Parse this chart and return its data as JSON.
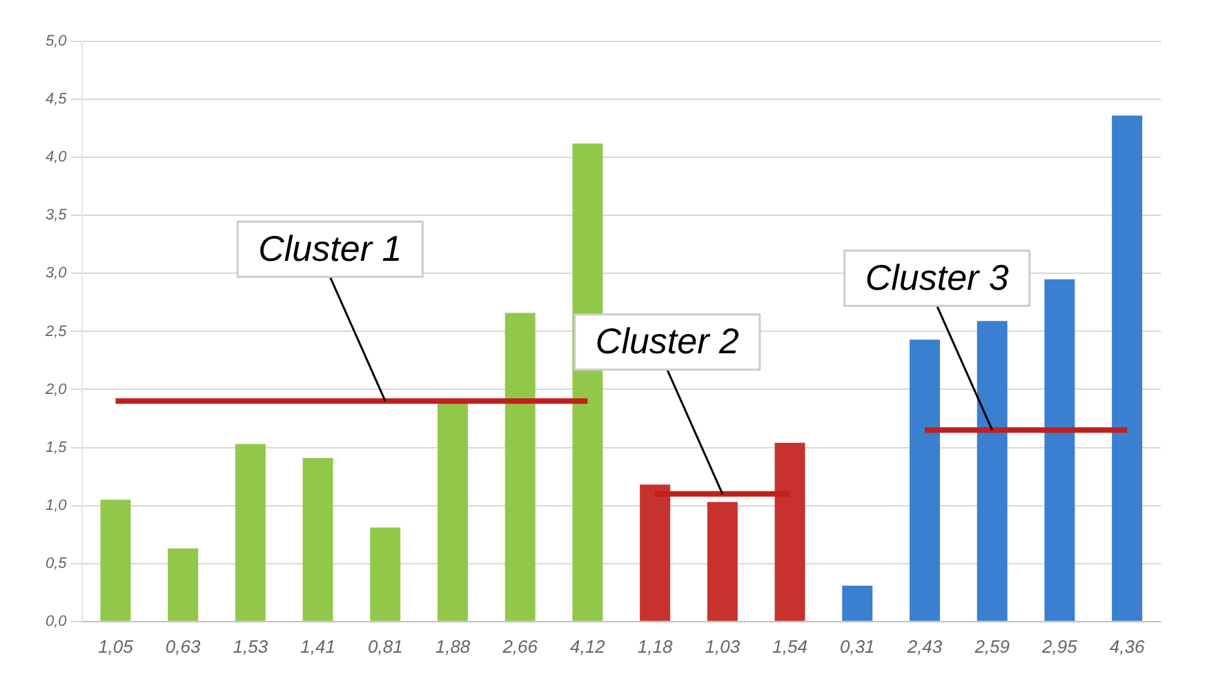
{
  "chart_data": {
    "type": "bar",
    "categories": [
      "1,05",
      "0,63",
      "1,53",
      "1,41",
      "0,81",
      "1,88",
      "2,66",
      "4,12",
      "1,18",
      "1,03",
      "1,54",
      "0,31",
      "2,43",
      "2,59",
      "2,95",
      "4,36"
    ],
    "series": [
      {
        "values": [
          1.05,
          0.63,
          1.53,
          1.41,
          0.81,
          1.88,
          2.66,
          4.12,
          1.18,
          1.03,
          1.54,
          0.31,
          2.43,
          2.59,
          2.95,
          4.36
        ],
        "colors": [
          "#92c84a",
          "#92c84a",
          "#92c84a",
          "#92c84a",
          "#92c84a",
          "#92c84a",
          "#92c84a",
          "#92c84a",
          "#c8322e",
          "#c8322e",
          "#c8322e",
          "#3a7fd0",
          "#3a7fd0",
          "#3a7fd0",
          "#3a7fd0",
          "#3a7fd0"
        ]
      },
      {
        "type": "line",
        "color": "#c0201c",
        "values": [
          1.9,
          1.9,
          1.9,
          1.9,
          1.9,
          1.9,
          1.9,
          1.9,
          null,
          null,
          null,
          null,
          null,
          null,
          null,
          null
        ]
      },
      {
        "type": "line",
        "color": "#c0201c",
        "values": [
          null,
          null,
          null,
          null,
          null,
          null,
          null,
          null,
          1.1,
          1.1,
          1.1,
          null,
          null,
          null,
          null,
          null
        ]
      },
      {
        "type": "line",
        "color": "#c0201c",
        "values": [
          null,
          null,
          null,
          null,
          null,
          null,
          null,
          null,
          null,
          null,
          null,
          null,
          1.65,
          1.65,
          1.65,
          1.65
        ]
      }
    ],
    "annotations": [
      {
        "text": "Cluster 1",
        "x": "0,81",
        "y": 1.9
      },
      {
        "text": "Cluster 2",
        "x": "1,03",
        "y": 1.1
      },
      {
        "text": "Cluster 3",
        "x": "2,59",
        "y": 1.65
      }
    ],
    "ylim": [
      0,
      5
    ],
    "yticks": [
      {
        "value": 0,
        "label": "0,0"
      },
      {
        "value": 0.5,
        "label": "0,5"
      },
      {
        "value": 1,
        "label": "1,0"
      },
      {
        "value": 1.5,
        "label": "1,5"
      },
      {
        "value": 2,
        "label": "2,0"
      },
      {
        "value": 2.5,
        "label": "2,5"
      },
      {
        "value": 3,
        "label": "3,0"
      },
      {
        "value": 3.5,
        "label": "3,5"
      },
      {
        "value": 4,
        "label": "4,0"
      },
      {
        "value": 4.5,
        "label": "4,5"
      },
      {
        "value": 5,
        "label": "5,0"
      }
    ],
    "grid": "y",
    "marker": "none",
    "legend": false
  }
}
